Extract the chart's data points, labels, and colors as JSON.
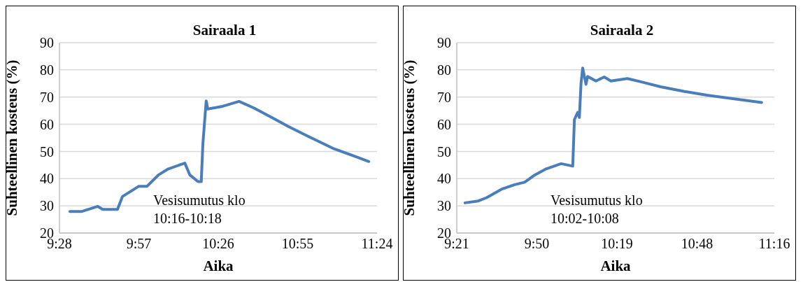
{
  "chart_data": [
    {
      "type": "line",
      "title": "Sairaala 1",
      "xlabel": "Aika",
      "ylabel": "Suhteellinen kosteus (%)",
      "color": "#4a7ebb",
      "grid": "y",
      "x": [
        9.53,
        9.6,
        9.7,
        9.73,
        9.82,
        9.85,
        9.95,
        10.0,
        10.07,
        10.13,
        10.23,
        10.26,
        10.31,
        10.33,
        10.34,
        10.36,
        10.37,
        10.46,
        10.56,
        10.65,
        10.78,
        10.86,
        10.98,
        11.13,
        11.35
      ],
      "values": [
        27.9,
        27.9,
        29.8,
        28.7,
        28.7,
        33.4,
        37.2,
        37.2,
        41.4,
        43.6,
        45.7,
        41.4,
        38.9,
        38.9,
        52.9,
        68.6,
        65.6,
        66.6,
        68.4,
        66.0,
        61.8,
        59.2,
        55.6,
        51.2,
        46.3
      ],
      "xlim": [
        9.4667,
        11.4
      ],
      "xticks": [
        {
          "value": 9.4667,
          "label": "9:28"
        },
        {
          "value": 9.95,
          "label": "9:57"
        },
        {
          "value": 10.4333,
          "label": "10:26"
        },
        {
          "value": 10.9167,
          "label": "10:55"
        },
        {
          "value": 11.4,
          "label": "11:24"
        }
      ],
      "ylim": [
        20,
        90
      ],
      "yticks": [
        20,
        30,
        40,
        50,
        60,
        70,
        80,
        90
      ],
      "annotations": [
        "Vesisumutus klo 10:16-10:18"
      ]
    },
    {
      "type": "line",
      "title": "Sairaala 2",
      "xlabel": "Aika",
      "ylabel": "Suhteellinen kosteus (%)",
      "color": "#4a7ebb",
      "grid": "y",
      "x": [
        9.4,
        9.48,
        9.53,
        9.62,
        9.7,
        9.76,
        9.82,
        9.89,
        9.98,
        10.05,
        10.06,
        10.08,
        10.09,
        10.1,
        10.11,
        10.13,
        10.14,
        10.19,
        10.24,
        10.28,
        10.38,
        10.47,
        10.58,
        10.72,
        10.86,
        11.04,
        11.19
      ],
      "values": [
        31.1,
        31.8,
        33.0,
        36.1,
        37.8,
        38.7,
        41.3,
        43.6,
        45.5,
        44.6,
        61.7,
        64.4,
        62.5,
        75.0,
        80.7,
        74.7,
        77.6,
        75.9,
        77.4,
        75.9,
        76.8,
        75.5,
        73.8,
        72.1,
        70.7,
        69.2,
        68.0
      ],
      "xlim": [
        9.35,
        11.2667
      ],
      "xticks": [
        {
          "value": 9.35,
          "label": "9:21"
        },
        {
          "value": 9.8333,
          "label": "9:50"
        },
        {
          "value": 10.3167,
          "label": "10:19"
        },
        {
          "value": 10.8,
          "label": "10:48"
        },
        {
          "value": 11.2667,
          "label": "11:16"
        }
      ],
      "ylim": [
        20,
        90
      ],
      "yticks": [
        20,
        30,
        40,
        50,
        60,
        70,
        80,
        90
      ],
      "annotations": [
        "Vesisumutus klo 10:02-10:08"
      ]
    }
  ]
}
